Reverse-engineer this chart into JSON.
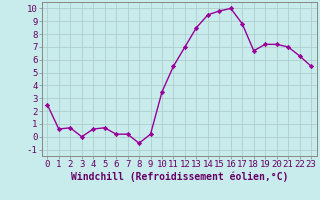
{
  "x": [
    0,
    1,
    2,
    3,
    4,
    5,
    6,
    7,
    8,
    9,
    10,
    11,
    12,
    13,
    14,
    15,
    16,
    17,
    18,
    19,
    20,
    21,
    22,
    23
  ],
  "y": [
    2.5,
    0.6,
    0.7,
    0.0,
    0.6,
    0.7,
    0.2,
    0.2,
    -0.5,
    0.2,
    3.5,
    5.5,
    7.0,
    8.5,
    9.5,
    9.8,
    10.0,
    8.8,
    6.7,
    7.2,
    7.2,
    7.0,
    6.3,
    5.5
  ],
  "line_color": "#990099",
  "marker": "D",
  "marker_size": 2.2,
  "linewidth": 1.0,
  "xlabel": "Windchill (Refroidissement éolien,°C)",
  "xlabel_fontsize": 7,
  "xlim": [
    -0.5,
    23.5
  ],
  "ylim": [
    -1.5,
    10.5
  ],
  "yticks": [
    -1,
    0,
    1,
    2,
    3,
    4,
    5,
    6,
    7,
    8,
    9,
    10
  ],
  "xticks": [
    0,
    1,
    2,
    3,
    4,
    5,
    6,
    7,
    8,
    9,
    10,
    11,
    12,
    13,
    14,
    15,
    16,
    17,
    18,
    19,
    20,
    21,
    22,
    23
  ],
  "grid_color": "#aac8c8",
  "bg_color": "#c8ecec",
  "tick_fontsize": 6.5,
  "spine_color": "#888888"
}
